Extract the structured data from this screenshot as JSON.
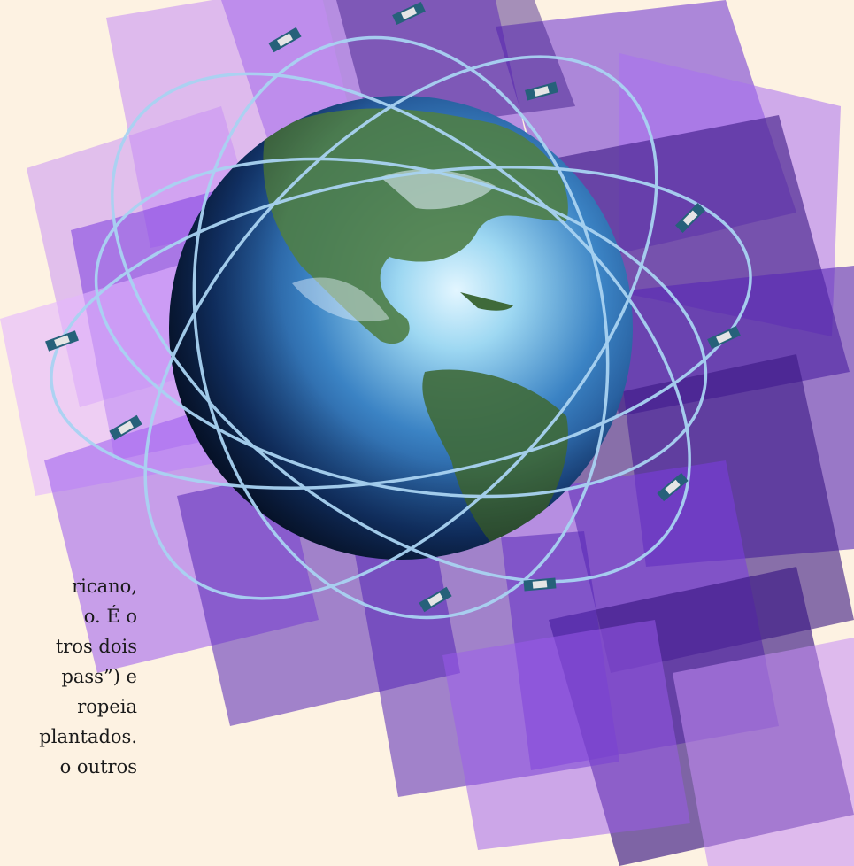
{
  "illustration": {
    "subject": "globe-with-satellite-orbits",
    "colors": {
      "background": "#fdf2e2",
      "panel_light": "#c58cf5",
      "panel_mid": "#7b3de0",
      "panel_dark": "#3a1784",
      "orbit": "#a9d3f2",
      "ocean_light": "#e3f6ff",
      "ocean_dark": "#06122e",
      "land": "#4f7e47"
    }
  },
  "text_fragment": {
    "lines": [
      "ricano,",
      "o. É o",
      "tros dois",
      "pass”) e",
      "ropeia",
      "plantados.",
      "o outros"
    ]
  }
}
